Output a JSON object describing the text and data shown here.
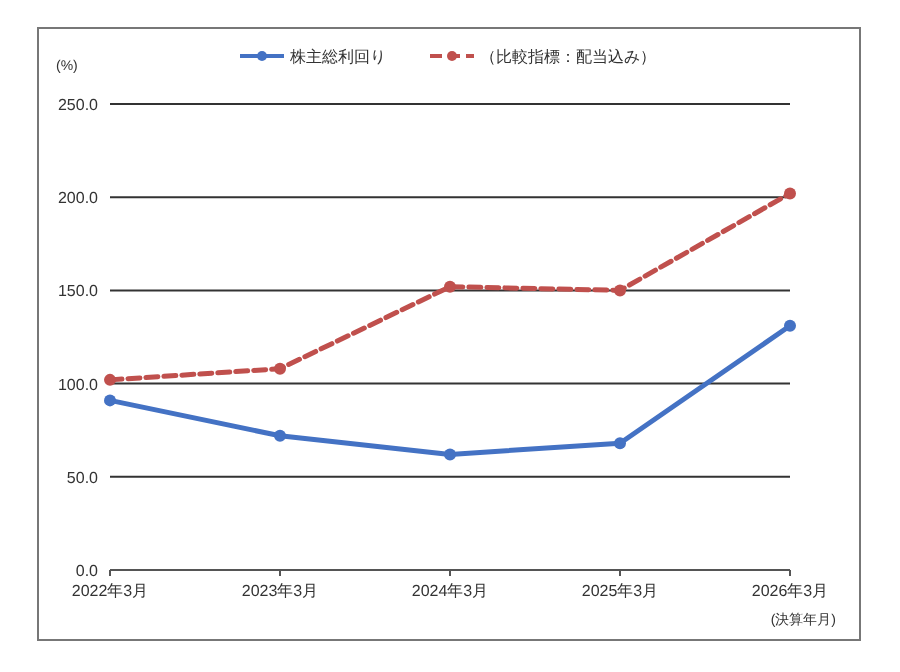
{
  "chart_data": {
    "type": "line",
    "ylabel": "(%)",
    "xlabel": "(決算年月)",
    "categories": [
      "2022年3月",
      "2023年3月",
      "2024年3月",
      "2025年3月",
      "2026年3月"
    ],
    "series": [
      {
        "name": "株主総利回り",
        "color": "#4472c4",
        "values": [
          91,
          72,
          62,
          68,
          131
        ],
        "line_style": "solid"
      },
      {
        "name": "（比較指標：配当込み）",
        "color": "#c0504d",
        "values": [
          102,
          108,
          152,
          150,
          202
        ],
        "line_style": "dashed"
      }
    ],
    "ylim": [
      0,
      250
    ],
    "yticks": [
      {
        "value": 0,
        "label": "0.0"
      },
      {
        "value": 50,
        "label": "50.0"
      },
      {
        "value": 100,
        "label": "100.0"
      },
      {
        "value": 150,
        "label": "150.0"
      },
      {
        "value": 200,
        "label": "200.0"
      },
      {
        "value": 250,
        "label": "250.0"
      }
    ],
    "grid": "y",
    "legend": "top",
    "marker": "circle"
  }
}
